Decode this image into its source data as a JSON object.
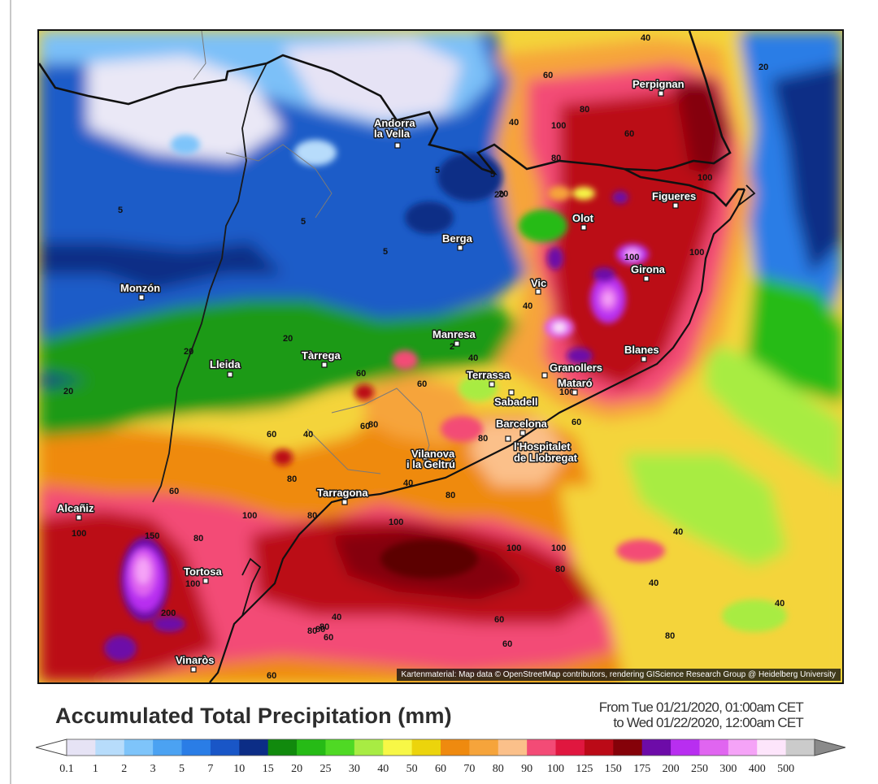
{
  "map": {
    "attribution": "Kartenmaterial: Map data © OpenStreetMap contributors, rendering GIScience Research Group @ Heidelberg University",
    "places": {
      "andorra_1": "Andorra",
      "andorra_2": "la Vella",
      "perpignan": "Perpignan",
      "figueres": "Figueres",
      "olot": "Olot",
      "girona": "Girona",
      "berga": "Berga",
      "monzon": "Monzón",
      "vic": "Vic",
      "manresa": "Manresa",
      "tarrega": "Tàrrega",
      "lleida": "Lleida",
      "terrassa": "Terrassa",
      "granollers": "Granollers",
      "blanes": "Blanes",
      "mataro": "Mataró",
      "sabadell": "Sabadell",
      "barcelona": "Barcelona",
      "hospitalet_1": "l'Hospitalet",
      "hospitalet_2": "de Llobregat",
      "vilanova_1": "Vilanova",
      "vilanova_2": "i la Geltrú",
      "tarragona": "Tarragona",
      "alcaniz": "Alcañiz",
      "tortosa": "Tortosa",
      "vinaros": "Vinaròs"
    },
    "contour_labels": [
      "40",
      "20",
      "60",
      "80",
      "100",
      "60",
      "80",
      "40",
      "5",
      "20",
      "5",
      "5",
      "5",
      "100",
      "100",
      "5",
      "100",
      "20",
      "40",
      "20",
      "20",
      "20",
      "2",
      "40",
      "60",
      "60",
      "100",
      "60",
      "80",
      "60",
      "40",
      "60",
      "80",
      "80",
      "60",
      "40",
      "80",
      "100",
      "80",
      "100",
      "150",
      "100",
      "80",
      "200",
      "100",
      "100",
      "100",
      "80",
      "40",
      "40",
      "40",
      "80",
      "60",
      "80",
      "80",
      "60",
      "60",
      "60",
      "80",
      "40"
    ]
  },
  "legend": {
    "title": "Accumulated Total Precipitation (mm)",
    "period_from": "From Tue 01/21/2020, 01:00am CET",
    "period_to": "to Wed 01/22/2020, 12:00am CET",
    "labels": [
      "0.1",
      "1",
      "2",
      "3",
      "5",
      "7",
      "10",
      "15",
      "20",
      "25",
      "30",
      "40",
      "50",
      "60",
      "70",
      "80",
      "90",
      "100",
      "125",
      "150",
      "175",
      "200",
      "250",
      "300",
      "400",
      "500"
    ],
    "colors": [
      "#e6e3f5",
      "#b7dcfb",
      "#7ec4fa",
      "#4ba2f2",
      "#2a7de6",
      "#1956c7",
      "#0c2d86",
      "#118a0d",
      "#26bb16",
      "#4fd924",
      "#a8ec43",
      "#f7f746",
      "#ecd40c",
      "#ef8a0f",
      "#f6a43b",
      "#fbc08a",
      "#f34b76",
      "#e0173f",
      "#bb0a17",
      "#850209",
      "#6d0ba8",
      "#b82ef0",
      "#e065f0",
      "#f5a3f7",
      "#fde5fb",
      "#cbcbcb"
    ]
  }
}
